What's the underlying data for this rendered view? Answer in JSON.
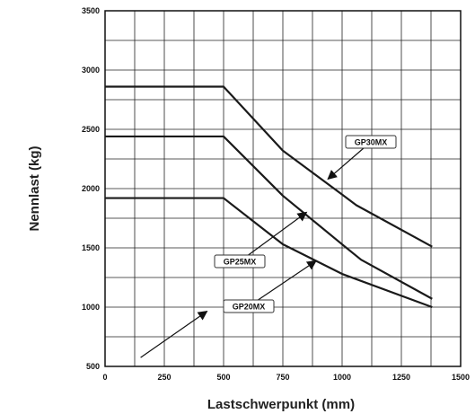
{
  "chart_data": {
    "type": "line",
    "xlabel": "Lastschwerpunkt (mm)",
    "ylabel": "Nennlast (kg)",
    "xlim": [
      0,
      1500
    ],
    "ylim": [
      500,
      3500
    ],
    "x_ticks": [
      0,
      250,
      500,
      750,
      1000,
      1250,
      1500
    ],
    "y_ticks": [
      500,
      1000,
      1500,
      2000,
      2500,
      3000,
      3500
    ],
    "grid": true,
    "series": [
      {
        "name": "GP30MX",
        "x": [
          0,
          500,
          750,
          1000,
          1060,
          1380
        ],
        "y": [
          2860,
          2860,
          2320,
          1950,
          1860,
          1510
        ]
      },
      {
        "name": "GP25MX",
        "x": [
          0,
          500,
          750,
          1000,
          1080,
          1380
        ],
        "y": [
          2440,
          2440,
          1940,
          1530,
          1400,
          1070
        ]
      },
      {
        "name": "GP20MX",
        "x": [
          0,
          500,
          750,
          1000,
          1380
        ],
        "y": [
          1920,
          1920,
          1530,
          1280,
          1000
        ]
      }
    ],
    "annotations": [
      {
        "text": "GP30MX",
        "arrow_to": [
          940,
          2080
        ]
      },
      {
        "text": "GP25MX",
        "arrow_to": [
          850,
          1800
        ]
      },
      {
        "text": "GP20MX",
        "arrow_to": [
          890,
          1390
        ]
      }
    ],
    "extra_arrow": {
      "from": [
        150,
        575
      ],
      "to": [
        430,
        965
      ]
    }
  }
}
